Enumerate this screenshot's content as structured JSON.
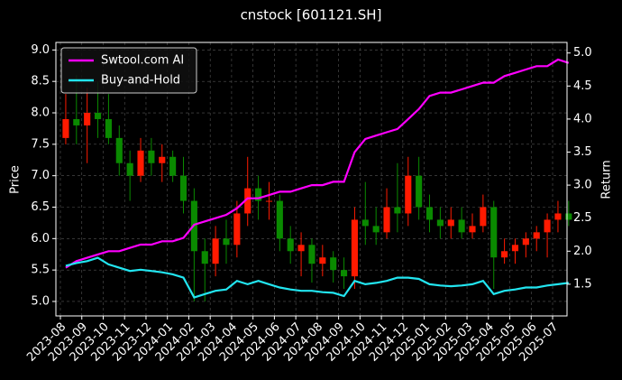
{
  "chart_data": {
    "type": "candlestick",
    "title": "cnstock [601121.SH]",
    "ylabel": "Price",
    "y2label": "Return",
    "x": [
      "2023-08",
      "2023-08",
      "2023-09",
      "2023-09",
      "2023-10",
      "2023-10",
      "2023-11",
      "2023-11",
      "2023-12",
      "2023-12",
      "2024-01",
      "2024-01",
      "2024-02",
      "2024-02",
      "2024-03",
      "2024-03",
      "2024-04",
      "2024-04",
      "2024-05",
      "2024-05",
      "2024-06",
      "2024-06",
      "2024-07",
      "2024-07",
      "2024-08",
      "2024-08",
      "2024-09",
      "2024-09",
      "2024-10",
      "2024-10",
      "2024-11",
      "2024-11",
      "2024-12",
      "2024-12",
      "2025-01",
      "2025-01",
      "2025-02",
      "2025-02",
      "2025-03",
      "2025-03",
      "2025-04",
      "2025-04",
      "2025-05",
      "2025-05",
      "2025-06",
      "2025-06",
      "2025-07",
      "2025-07"
    ],
    "open": [
      7.6,
      7.9,
      7.8,
      8.0,
      7.9,
      7.6,
      7.2,
      7.0,
      7.4,
      7.2,
      7.3,
      7.0,
      6.6,
      5.8,
      5.6,
      6.0,
      5.9,
      6.4,
      6.8,
      6.6,
      6.6,
      6.0,
      5.8,
      5.9,
      5.6,
      5.7,
      5.5,
      5.4,
      6.3,
      6.2,
      6.1,
      6.5,
      6.4,
      7.0,
      6.5,
      6.3,
      6.2,
      6.3,
      6.1,
      6.2,
      6.5,
      5.7,
      5.8,
      5.9,
      6.0,
      6.1,
      6.3,
      6.4
    ],
    "high": [
      8.3,
      8.6,
      8.4,
      8.5,
      8.3,
      7.8,
      7.4,
      7.6,
      7.6,
      7.5,
      7.4,
      7.3,
      6.8,
      6.0,
      6.2,
      6.3,
      6.6,
      7.3,
      7.0,
      6.9,
      6.7,
      6.2,
      6.1,
      6.0,
      5.9,
      5.8,
      5.7,
      6.5,
      6.9,
      6.5,
      6.8,
      7.2,
      7.3,
      7.3,
      6.7,
      6.5,
      6.5,
      6.5,
      6.4,
      6.7,
      6.6,
      6.0,
      6.0,
      6.1,
      6.2,
      6.4,
      6.6,
      6.6
    ],
    "low": [
      7.5,
      7.5,
      7.2,
      7.6,
      7.5,
      7.0,
      6.6,
      6.9,
      7.0,
      6.9,
      6.9,
      6.4,
      5.0,
      5.0,
      5.4,
      5.6,
      5.7,
      6.2,
      6.3,
      6.3,
      5.8,
      5.6,
      5.4,
      5.3,
      5.4,
      5.3,
      5.2,
      5.2,
      5.9,
      5.9,
      6.0,
      6.1,
      6.2,
      6.3,
      6.1,
      6.0,
      6.0,
      6.0,
      6.0,
      6.1,
      5.2,
      5.6,
      5.6,
      5.7,
      5.8,
      5.7,
      6.1,
      6.2
    ],
    "close": [
      7.9,
      7.8,
      8.0,
      7.9,
      7.6,
      7.2,
      7.0,
      7.4,
      7.2,
      7.3,
      7.0,
      6.6,
      5.8,
      5.6,
      6.0,
      5.9,
      6.4,
      6.8,
      6.6,
      6.6,
      6.0,
      5.8,
      5.9,
      5.6,
      5.7,
      5.5,
      5.4,
      6.3,
      6.2,
      6.1,
      6.5,
      6.4,
      7.0,
      6.5,
      6.3,
      6.2,
      6.3,
      6.1,
      6.2,
      6.5,
      5.7,
      5.8,
      5.9,
      6.0,
      6.1,
      6.3,
      6.4,
      6.3
    ],
    "up_color": "#ff1a00",
    "down_color": "#0a8a00",
    "series": [
      {
        "name": "Swtool.com AI",
        "color": "#ff00ff",
        "axis": "y2",
        "values": [
          1.75,
          1.85,
          1.9,
          1.95,
          2.0,
          2.0,
          2.05,
          2.1,
          2.1,
          2.15,
          2.15,
          2.2,
          2.4,
          2.45,
          2.5,
          2.55,
          2.65,
          2.8,
          2.8,
          2.85,
          2.9,
          2.9,
          2.95,
          3.0,
          3.0,
          3.05,
          3.05,
          3.5,
          3.7,
          3.75,
          3.8,
          3.85,
          4.0,
          4.15,
          4.35,
          4.4,
          4.4,
          4.45,
          4.5,
          4.55,
          4.55,
          4.65,
          4.7,
          4.75,
          4.8,
          4.8,
          4.9,
          4.85
        ]
      },
      {
        "name": "Buy-and-Hold",
        "color": "#22e5f0",
        "axis": "y2",
        "values": [
          1.78,
          1.82,
          1.85,
          1.9,
          1.8,
          1.75,
          1.7,
          1.72,
          1.7,
          1.68,
          1.65,
          1.6,
          1.3,
          1.35,
          1.4,
          1.42,
          1.55,
          1.5,
          1.55,
          1.5,
          1.45,
          1.42,
          1.4,
          1.4,
          1.38,
          1.37,
          1.32,
          1.55,
          1.5,
          1.52,
          1.55,
          1.6,
          1.6,
          1.58,
          1.5,
          1.48,
          1.47,
          1.48,
          1.5,
          1.55,
          1.35,
          1.4,
          1.42,
          1.45,
          1.45,
          1.48,
          1.5,
          1.52
        ]
      }
    ],
    "xticks": [
      "2023-08",
      "2023-09",
      "2023-10",
      "2023-11",
      "2023-12",
      "2024-01",
      "2024-02",
      "2024-03",
      "2024-04",
      "2024-05",
      "2024-06",
      "2024-07",
      "2024-08",
      "2024-09",
      "2024-10",
      "2024-11",
      "2024-12",
      "2025-01",
      "2025-02",
      "2025-03",
      "2025-04",
      "2025-05",
      "2025-06",
      "2025-07"
    ],
    "ylim": [
      4.77,
      9.12
    ],
    "yticks": [
      {
        "value": 5,
        "label": "5.0"
      },
      5.5,
      {
        "value": 6,
        "label": "6.0"
      },
      6.5,
      {
        "value": 7,
        "label": "7.0"
      },
      7.5,
      {
        "value": 8,
        "label": "8.0"
      },
      8.5,
      {
        "value": 9,
        "label": "9.0"
      }
    ],
    "y2lim": [
      1.02,
      5.16
    ],
    "y2ticks": [
      1.5,
      {
        "value": 2,
        "label": "2.0"
      },
      2.5,
      {
        "value": 3,
        "label": "3.0"
      },
      3.5,
      {
        "value": 4,
        "label": "4.0"
      },
      4.5,
      {
        "value": 5,
        "label": "5.0"
      }
    ],
    "grid": true,
    "legend": "upper left"
  }
}
